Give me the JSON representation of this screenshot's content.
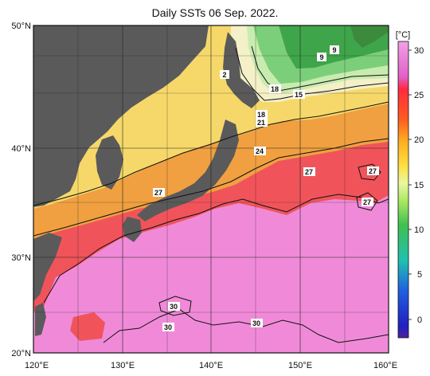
{
  "title": "Daily SSTs 06 Sep. 2022.",
  "lat_labels": [
    "50°N",
    "40°N",
    "30°N",
    "20°N"
  ],
  "lon_labels": [
    "120°E",
    "130°E",
    "140°E",
    "150°E",
    "160°E"
  ],
  "colorbar": {
    "unit": "[°C]",
    "ticks": [
      "30",
      "25",
      "20",
      "15",
      "10",
      "5",
      "0"
    ]
  },
  "contour_labels": [
    "2",
    "9",
    "9",
    "15",
    "18",
    "18",
    "21",
    "24",
    "27",
    "27",
    "27",
    "27",
    "30",
    "30",
    "30"
  ],
  "colors": {
    "land": "#5a5a5a",
    "sst_30": "#f08ad8",
    "sst_27": "#f0545a",
    "sst_24": "#f0a040",
    "sst_21": "#f6d86a",
    "sst_18": "#f4f0c8",
    "sst_15": "#d0f0b0",
    "sst_10": "#7ccf7a",
    "sst_8": "#3fa54a"
  }
}
